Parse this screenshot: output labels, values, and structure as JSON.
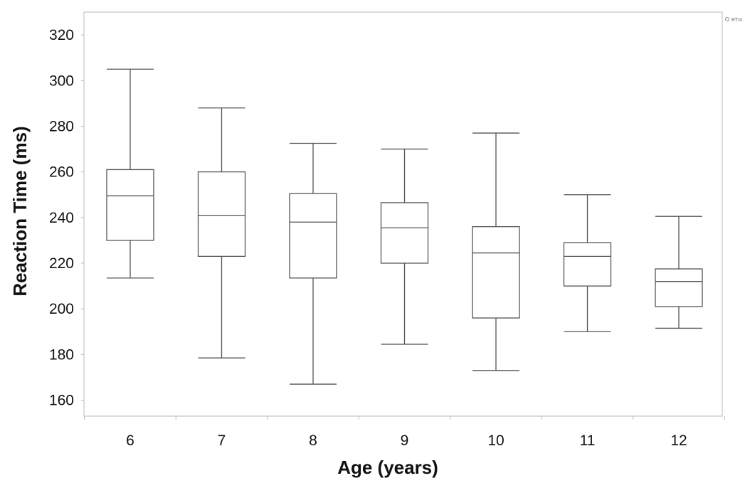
{
  "chart_data": {
    "type": "box",
    "title": "",
    "xlabel": "Age (years)",
    "ylabel": "Reaction Time (ms)",
    "ylim": [
      153,
      330
    ],
    "yticks": [
      160,
      180,
      200,
      220,
      240,
      260,
      280,
      300,
      320
    ],
    "categories": [
      "6",
      "7",
      "8",
      "9",
      "10",
      "11",
      "12"
    ],
    "boxes": [
      {
        "category": "6",
        "whisker_low": 213.5,
        "q1": 230,
        "median": 249.5,
        "q3": 261,
        "whisker_high": 305
      },
      {
        "category": "7",
        "whisker_low": 178.5,
        "q1": 223,
        "median": 241,
        "q3": 260,
        "whisker_high": 288
      },
      {
        "category": "8",
        "whisker_low": 167,
        "q1": 213.5,
        "median": 238,
        "q3": 250.5,
        "whisker_high": 272.5
      },
      {
        "category": "9",
        "whisker_low": 184.5,
        "q1": 220,
        "median": 235.5,
        "q3": 246.5,
        "whisker_high": 270
      },
      {
        "category": "10",
        "whisker_low": 173,
        "q1": 196,
        "median": 224.5,
        "q3": 236,
        "whisker_high": 277
      },
      {
        "category": "11",
        "whisker_low": 190,
        "q1": 210,
        "median": 223,
        "q3": 229,
        "whisker_high": 250
      },
      {
        "category": "12",
        "whisker_low": 191.5,
        "q1": 201,
        "median": 212,
        "q3": 217.5,
        "whisker_high": 240.5
      }
    ],
    "grid": false,
    "legend": {
      "placement": "top-right",
      "entries": [
        "RTm"
      ]
    },
    "colors": {
      "stroke": "#555555",
      "frame": "#bbbbbb",
      "legend_marker": "#888888"
    }
  }
}
